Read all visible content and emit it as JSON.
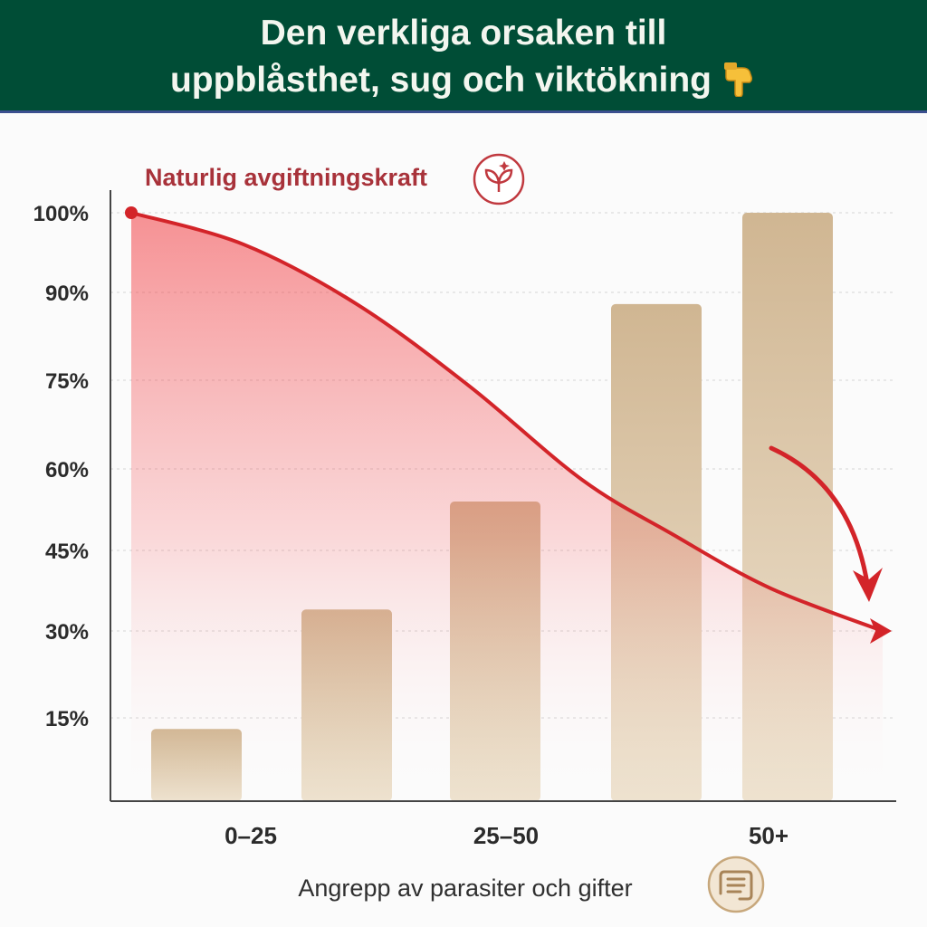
{
  "header": {
    "title_line1": "Den verkliga orsaken till",
    "title_line2": "uppblåsthet, sug och viktökning",
    "title_icon": "pointing-down-hand-icon"
  },
  "colors": {
    "banner": "#004d36",
    "curve": "#d32429",
    "bar": "#d2bb98",
    "label_red": "#a8323a"
  },
  "chart_data": {
    "type": "bar",
    "x_ticks": [
      "0–25",
      "25–50",
      "50+"
    ],
    "xlabel": "Angrepp av parasiter och gifter",
    "x_icon": "intestine-icon",
    "y_ticks": [
      "15%",
      "30%",
      "45%",
      "60%",
      "75%",
      "90%",
      "100%"
    ],
    "bars": [
      {
        "value": 13
      },
      {
        "value": 34
      },
      {
        "value": 54
      },
      {
        "value": 88
      },
      {
        "value": 100
      }
    ],
    "line_series": {
      "name": "Naturlig avgiftningskraft",
      "icon": "leaf-sprout-icon",
      "x": [
        0,
        0.15,
        0.3,
        0.45,
        0.6,
        0.72,
        0.85,
        1.0
      ],
      "y": [
        100,
        96,
        88,
        74,
        58,
        48,
        38,
        30
      ],
      "end_arrow": true
    },
    "grid": true,
    "legend": "none"
  }
}
